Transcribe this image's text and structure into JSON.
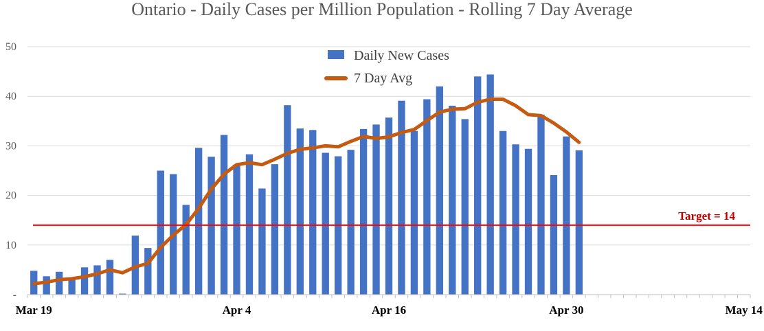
{
  "chart_data": {
    "type": "bar",
    "title": "Ontario - Daily Cases per Million Population - Rolling 7 Day Average",
    "xlabel": "",
    "ylabel": "",
    "ylim": [
      0,
      50
    ],
    "yticks": [
      "-",
      "10",
      "20",
      "30",
      "40",
      "50"
    ],
    "xticks": [
      "Mar 19",
      "Apr 4",
      "Apr 16",
      "Apr 30",
      "May 14"
    ],
    "x_range_days": [
      "Mar 19",
      "May 15"
    ],
    "gridlines": true,
    "legend_position": "top-center",
    "series": [
      {
        "name": "Daily New Cases",
        "type": "bar",
        "color": "#4472c4",
        "values": [
          4.8,
          3.7,
          4.6,
          3.2,
          5.5,
          5.9,
          7.0,
          0.2,
          11.9,
          9.4,
          25.0,
          24.3,
          18.1,
          29.6,
          27.8,
          32.2,
          26.2,
          28.3,
          21.4,
          26.3,
          38.2,
          33.5,
          33.2,
          28.6,
          27.9,
          29.2,
          33.4,
          34.3,
          35.7,
          39.1,
          33.0,
          39.4,
          42.0,
          38.1,
          35.4,
          44.0,
          44.4,
          33.0,
          30.3,
          29.4,
          36.3,
          24.1,
          31.9,
          29.1
        ]
      },
      {
        "name": "7 Day Avg",
        "type": "line",
        "color": "#c55a11",
        "values": [
          2.2,
          2.5,
          3.0,
          3.2,
          3.6,
          4.2,
          5.0,
          4.4,
          5.6,
          6.3,
          9.5,
          12.0,
          14.1,
          17.4,
          21.3,
          24.3,
          26.2,
          26.6,
          26.2,
          27.3,
          28.5,
          29.3,
          29.6,
          30.0,
          29.8,
          30.9,
          31.9,
          31.5,
          31.8,
          32.7,
          33.3,
          35.1,
          36.8,
          37.4,
          37.5,
          38.8,
          39.4,
          39.4,
          38.1,
          36.3,
          36.1,
          34.6,
          32.8,
          30.7
        ]
      }
    ],
    "reference_line": {
      "value": 14,
      "label": "Target = 14",
      "color": "#ff0000"
    }
  }
}
